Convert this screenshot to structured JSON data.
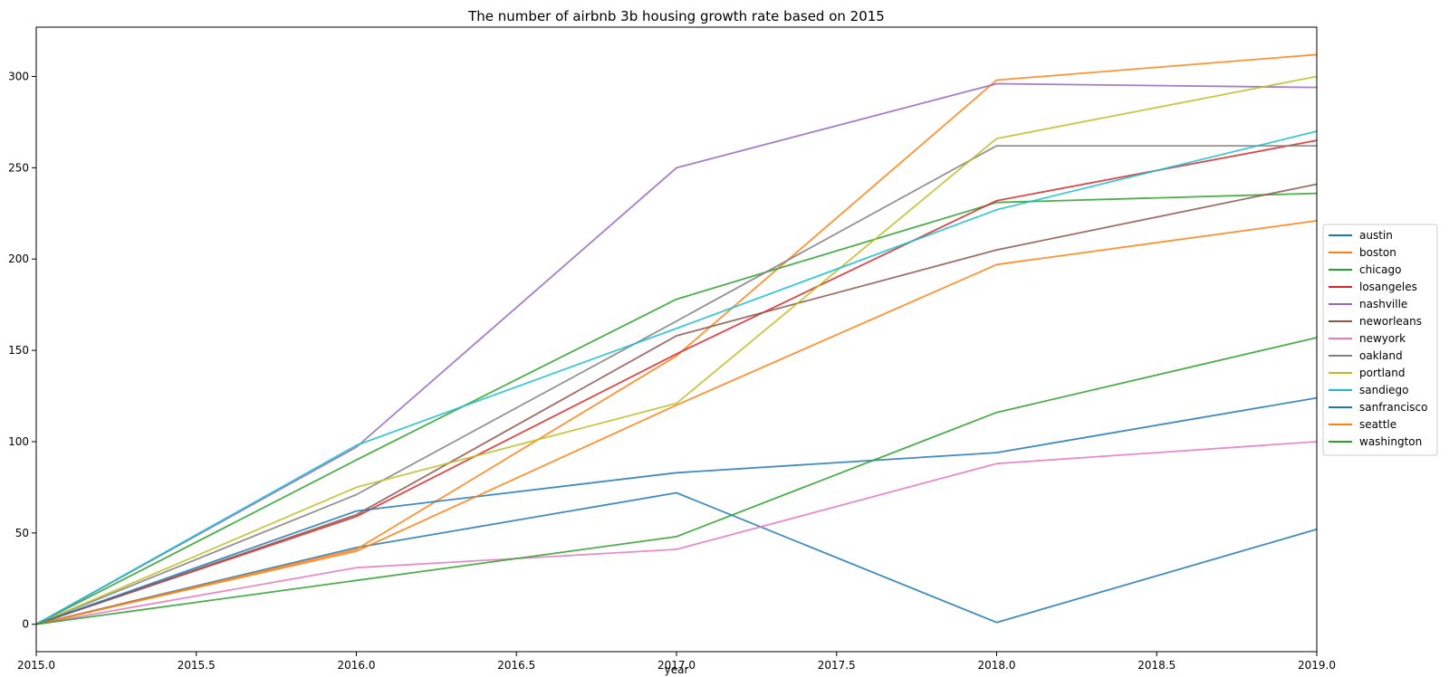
{
  "chart_data": {
    "type": "line",
    "title": "The number of airbnb 3b housing growth rate based on 2015",
    "xlabel": "year",
    "ylabel": "",
    "xlim": [
      2015.0,
      2019.0
    ],
    "ylim": [
      -15,
      327
    ],
    "x": [
      2015,
      2016,
      2017,
      2018,
      2019
    ],
    "x_tick_labels": [
      "2015.0",
      "2015.5",
      "2016.0",
      "2016.5",
      "2017.0",
      "2017.5",
      "2018.0",
      "2018.5",
      "2019.0"
    ],
    "y_tick_labels": [
      "0",
      "50",
      "100",
      "150",
      "200",
      "250",
      "300"
    ],
    "grid": false,
    "legend_position": "center-right",
    "series": [
      {
        "name": "austin",
        "color": "#1f77b4",
        "values": [
          0,
          42,
          72,
          1,
          52
        ]
      },
      {
        "name": "boston",
        "color": "#ff7f0e",
        "values": [
          0,
          41,
          147,
          298,
          312
        ]
      },
      {
        "name": "chicago",
        "color": "#2ca02c",
        "values": [
          0,
          90,
          178,
          231,
          236
        ]
      },
      {
        "name": "losangeles",
        "color": "#d62728",
        "values": [
          0,
          59,
          148,
          232,
          265
        ]
      },
      {
        "name": "nashville",
        "color": "#9467bd",
        "values": [
          0,
          97,
          250,
          296,
          294
        ]
      },
      {
        "name": "neworleans",
        "color": "#8c564b",
        "values": [
          0,
          60,
          158,
          205,
          241
        ]
      },
      {
        "name": "newyork",
        "color": "#e377c2",
        "values": [
          0,
          31,
          41,
          88,
          100
        ]
      },
      {
        "name": "oakland",
        "color": "#7f7f7f",
        "values": [
          0,
          71,
          166,
          262,
          262
        ]
      },
      {
        "name": "portland",
        "color": "#bcbd22",
        "values": [
          0,
          75,
          121,
          266,
          300
        ]
      },
      {
        "name": "sandiego",
        "color": "#17becf",
        "values": [
          0,
          98,
          162,
          227,
          270
        ]
      },
      {
        "name": "sanfrancisco",
        "color": "#1f77b4",
        "values": [
          0,
          62,
          83,
          94,
          124
        ]
      },
      {
        "name": "seattle",
        "color": "#ff7f0e",
        "values": [
          0,
          40,
          120,
          197,
          221
        ]
      },
      {
        "name": "washington",
        "color": "#2ca02c",
        "values": [
          0,
          24,
          48,
          116,
          157
        ]
      }
    ]
  }
}
